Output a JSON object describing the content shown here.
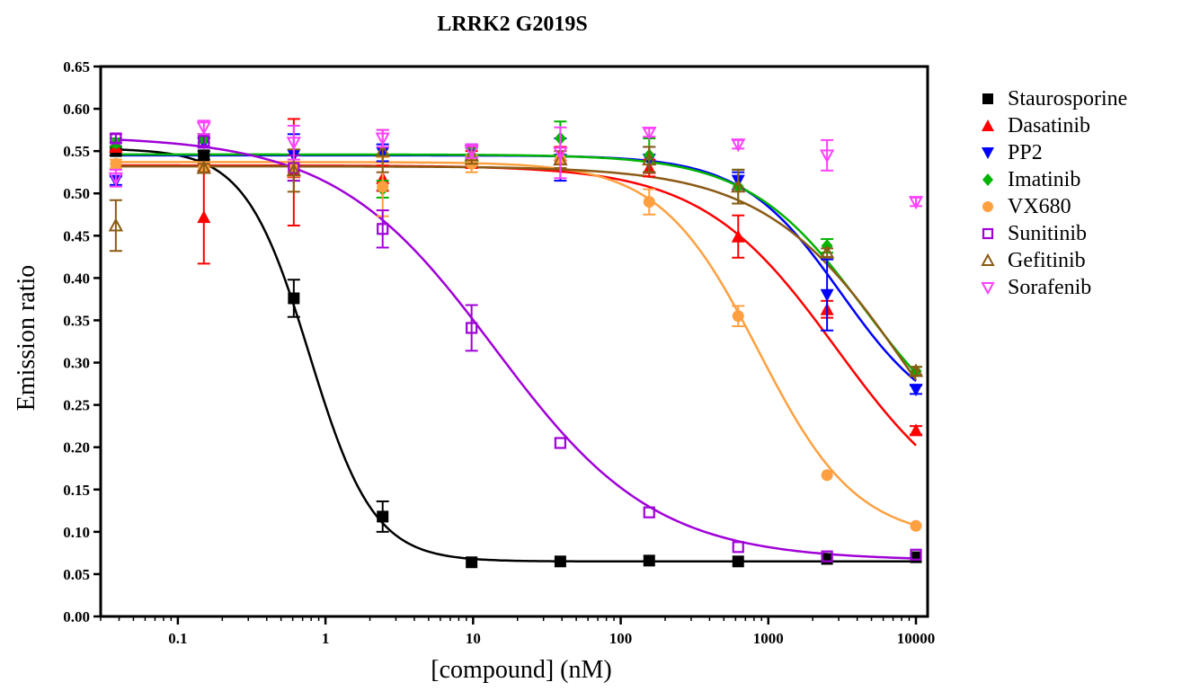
{
  "chart_data": {
    "type": "scatter",
    "title": "LRRK2 G2019S",
    "xlabel": "[compound] (nM)",
    "ylabel": "Emission ratio",
    "xscale": "log",
    "xlim": [
      0.03,
      12000
    ],
    "ylim": [
      0.0,
      0.65
    ],
    "x_ticks": [
      "0.1",
      "1",
      "10",
      "100",
      "1000",
      "10000"
    ],
    "y_ticks": [
      "0.00",
      "0.05",
      "0.10",
      "0.15",
      "0.20",
      "0.25",
      "0.30",
      "0.35",
      "0.40",
      "0.45",
      "0.50",
      "0.55",
      "0.60",
      "0.65"
    ],
    "grid": false,
    "legend_position": "right",
    "x": [
      0.038,
      0.15,
      0.61,
      2.44,
      9.77,
      39,
      156,
      625,
      2500,
      10000
    ],
    "series": [
      {
        "name": "Staurosporine",
        "color": "#000000",
        "marker": "square-filled",
        "y": [
          0.55,
          0.545,
          0.376,
          0.118,
          0.064,
          0.065,
          0.066,
          0.065,
          0.068,
          0.07
        ],
        "err": [
          0.005,
          0.005,
          0.022,
          0.018,
          0.003,
          0.003,
          0.003,
          0.003,
          0.003,
          0.003
        ],
        "fit": {
          "top": 0.553,
          "bottom": 0.065,
          "ic50": 0.78,
          "hill": 2.0
        }
      },
      {
        "name": "Dasatinib",
        "color": "#ff0000",
        "marker": "triangle-up-filled",
        "y": [
          0.555,
          0.472,
          0.525,
          0.518,
          0.54,
          0.545,
          0.53,
          0.449,
          0.363,
          0.22
        ],
        "err": [
          0.005,
          0.055,
          0.063,
          0.015,
          0.01,
          0.01,
          0.01,
          0.025,
          0.01,
          0.005
        ],
        "fit": {
          "top": 0.533,
          "bottom": 0.1,
          "ic50": 2900,
          "hill": 0.95
        }
      },
      {
        "name": "PP2",
        "color": "#0000ff",
        "marker": "triangle-down-filled",
        "y": [
          0.515,
          0.56,
          0.545,
          0.548,
          0.55,
          0.54,
          0.54,
          0.515,
          0.38,
          0.268
        ],
        "err": [
          0.005,
          0.005,
          0.025,
          0.01,
          0.008,
          0.025,
          0.015,
          0.01,
          0.042,
          0.005
        ],
        "fit": {
          "top": 0.545,
          "bottom": 0.22,
          "ic50": 3100,
          "hill": 1.3
        }
      },
      {
        "name": "Imatinib",
        "color": "#00b400",
        "marker": "diamond-filled",
        "y": [
          0.56,
          0.565,
          0.53,
          0.505,
          0.545,
          0.565,
          0.545,
          0.508,
          0.438,
          0.29
        ],
        "err": [
          0.005,
          0.005,
          0.015,
          0.01,
          0.008,
          0.02,
          0.02,
          0.02,
          0.008,
          0.005
        ],
        "fit": {
          "top": 0.546,
          "bottom": 0.18,
          "ic50": 4500,
          "hill": 1.1
        }
      },
      {
        "name": "VX680",
        "color": "#ffa040",
        "marker": "circle-filled",
        "y": [
          0.535,
          0.53,
          0.53,
          0.508,
          0.535,
          0.54,
          0.49,
          0.355,
          0.167,
          0.107
        ],
        "err": [
          0.005,
          0.005,
          0.01,
          0.035,
          0.01,
          0.01,
          0.015,
          0.012,
          0.003,
          0.003
        ],
        "fit": {
          "top": 0.537,
          "bottom": 0.09,
          "ic50": 860,
          "hill": 1.3
        }
      },
      {
        "name": "Sunitinib",
        "color": "#a000d8",
        "marker": "square-open",
        "y": [
          0.565,
          0.562,
          0.53,
          0.458,
          0.341,
          0.205,
          0.123,
          0.082,
          0.071,
          0.073
        ],
        "err": [
          0.005,
          0.008,
          0.015,
          0.022,
          0.027,
          0.003,
          0.003,
          0.003,
          0.003,
          0.003
        ],
        "fit": {
          "top": 0.568,
          "bottom": 0.066,
          "ic50": 14,
          "hill": 0.8
        }
      },
      {
        "name": "Gefitinib",
        "color": "#8b5a14",
        "marker": "triangle-up-open",
        "y": [
          0.462,
          0.53,
          0.527,
          0.55,
          0.545,
          0.54,
          0.54,
          0.508,
          0.43,
          0.29
        ],
        "err": [
          0.03,
          0.005,
          0.025,
          0.025,
          0.01,
          0.01,
          0.015,
          0.02,
          0.005,
          0.005
        ],
        "fit": {
          "top": 0.532,
          "bottom": 0.05,
          "ic50": 9000,
          "hill": 0.9
        }
      },
      {
        "name": "Sorafenib",
        "color": "#ff40ff",
        "marker": "triangle-down-open",
        "y": [
          0.518,
          0.578,
          0.56,
          0.565,
          0.55,
          0.548,
          0.572,
          0.558,
          0.545,
          0.49
        ],
        "err": [
          0.01,
          0.008,
          0.02,
          0.01,
          0.008,
          0.03,
          0.005,
          0.005,
          0.018,
          0.005
        ],
        "fit": null
      }
    ]
  }
}
